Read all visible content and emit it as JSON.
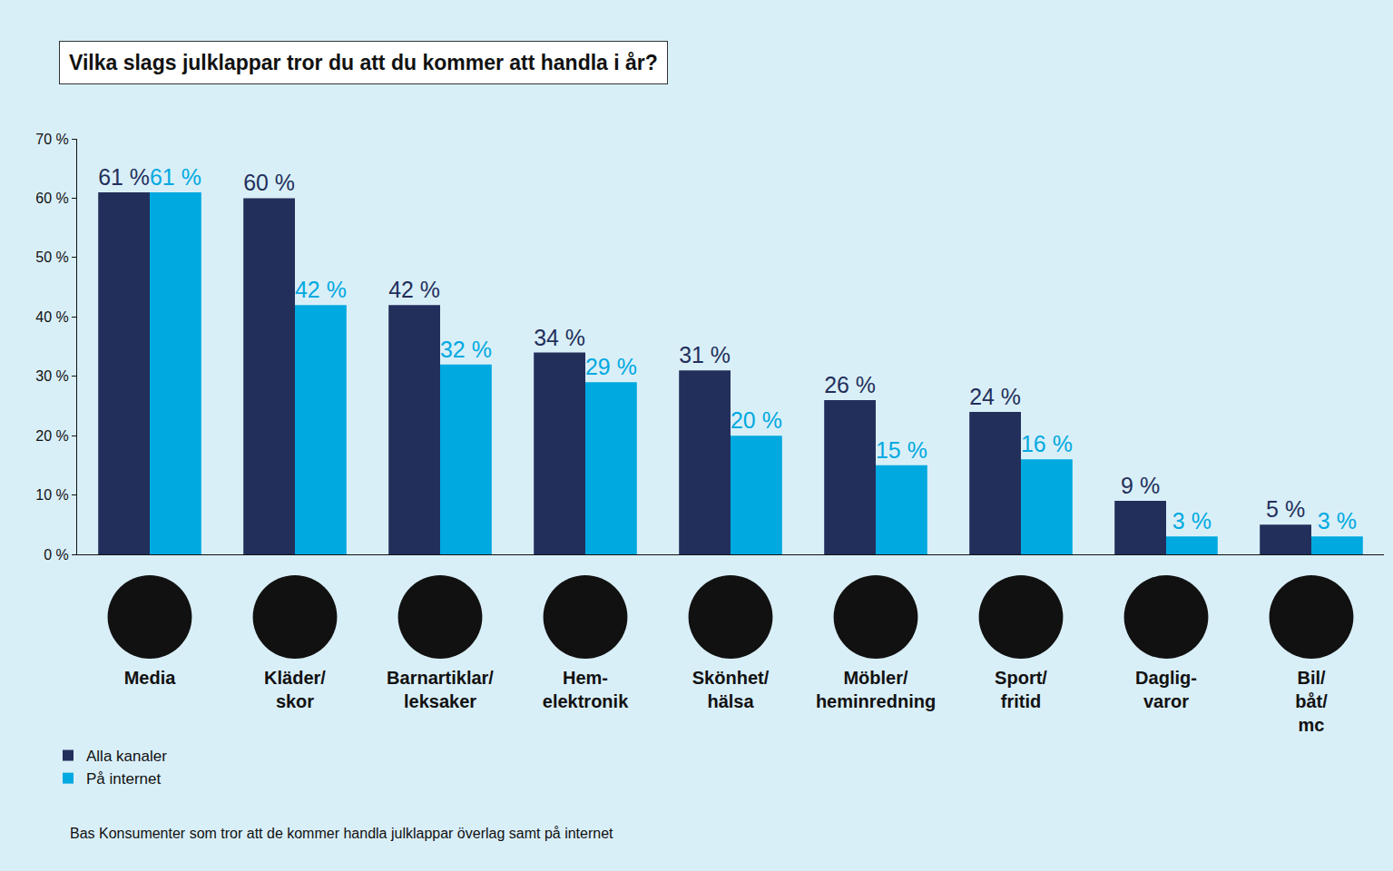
{
  "chart_data": {
    "type": "bar",
    "title": "Vilka slags julklappar tror du att du kommer att handla i år?",
    "categories": [
      "Media",
      "Kläder/skor",
      "Barnartiklar/leksaker",
      "Hem-elektronik",
      "Skönhet/hälsa",
      "Möbler/heminredning",
      "Sport/fritid",
      "Daglig-varor",
      "Bil/båt/mc"
    ],
    "series": [
      {
        "name": "Alla kanaler",
        "color": "#232f5b",
        "values": [
          61,
          60,
          42,
          34,
          31,
          26,
          24,
          9,
          5
        ],
        "value_labels": [
          "61 %",
          "60 %",
          "42 %",
          "34 %",
          "31 %",
          "26 %",
          "24 %",
          "9 %",
          "5 %"
        ]
      },
      {
        "name": "På internet",
        "color": "#00a9e0",
        "values": [
          61,
          42,
          32,
          29,
          20,
          15,
          16,
          3,
          3
        ],
        "value_labels": [
          "61 %",
          "42 %",
          "32 %",
          "29 %",
          "20 %",
          "15 %",
          "16 %",
          "3 %",
          "3 %"
        ]
      }
    ],
    "ylim": [
      0,
      70
    ],
    "yticks": [
      {
        "value": 0,
        "label": "0 %"
      },
      {
        "value": 10,
        "label": "10 %"
      },
      {
        "value": 20,
        "label": "20 %"
      },
      {
        "value": 30,
        "label": "30 %"
      },
      {
        "value": 40,
        "label": "40 %"
      },
      {
        "value": 50,
        "label": "50 %"
      },
      {
        "value": 60,
        "label": "60 %"
      },
      {
        "value": 70,
        "label": "70 %"
      }
    ],
    "grid": false,
    "data_labels": true,
    "legend": "bottom left",
    "footnote": "Bas Konsumenter som tror att de kommer handla julklappar överlag samt på internet"
  }
}
